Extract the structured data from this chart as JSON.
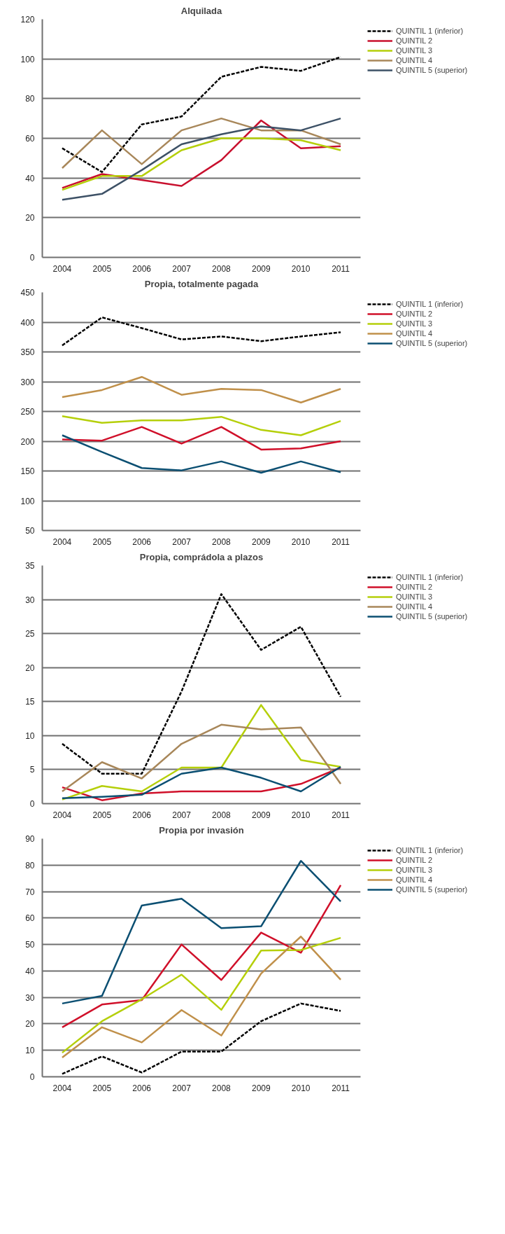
{
  "chart_data": [
    {
      "type": "line",
      "title": "Alquilada",
      "categories": [
        "2004",
        "2005",
        "2006",
        "2007",
        "2008",
        "2009",
        "2010",
        "2011"
      ],
      "ylim": [
        0,
        120
      ],
      "yticks": [
        0,
        20,
        40,
        60,
        80,
        100,
        120
      ],
      "grid": "y",
      "legend": "right",
      "series": [
        {
          "name": "QUINTIL 1 (inferior)",
          "color": "#000000",
          "line_style": "dashed",
          "values": [
            55,
            43,
            67,
            71,
            91,
            96,
            94,
            101
          ]
        },
        {
          "name": "QUINTIL 2",
          "color": "#c8102e",
          "values": [
            35,
            42,
            39,
            36,
            49,
            69,
            55,
            56
          ]
        },
        {
          "name": "QUINTIL 3",
          "color": "#b5cf0a",
          "values": [
            34,
            41,
            41,
            54,
            60,
            60,
            59,
            54
          ]
        },
        {
          "name": "QUINTIL 4",
          "color": "#a8875a",
          "values": [
            45,
            64,
            47,
            64,
            70,
            64,
            64,
            57
          ]
        },
        {
          "name": "QUINTIL 5 (superior)",
          "color": "#3d5166",
          "values": [
            29,
            32,
            44,
            57,
            62,
            66,
            64,
            70
          ]
        }
      ]
    },
    {
      "type": "line",
      "title": "Propia, totalmente pagada",
      "categories": [
        "2004",
        "2005",
        "2006",
        "2007",
        "2008",
        "2009",
        "2010",
        "2011"
      ],
      "ylim": [
        50,
        450
      ],
      "yticks": [
        50,
        100,
        150,
        200,
        250,
        300,
        350,
        400,
        450
      ],
      "grid": "y",
      "legend": "right",
      "series": [
        {
          "name": "QUINTIL 1 (inferior)",
          "color": "#000000",
          "line_style": "dashed",
          "values": [
            361,
            408,
            390,
            371,
            376,
            368,
            376,
            383
          ]
        },
        {
          "name": "QUINTIL 2",
          "color": "#d0102a",
          "values": [
            203,
            201,
            224,
            196,
            224,
            186,
            188,
            200
          ]
        },
        {
          "name": "QUINTIL 3",
          "color": "#b5cf0a",
          "values": [
            242,
            231,
            235,
            235,
            241,
            219,
            210,
            234
          ]
        },
        {
          "name": "QUINTIL 4",
          "color": "#c0904a",
          "values": [
            274,
            286,
            308,
            278,
            288,
            286,
            265,
            288
          ]
        },
        {
          "name": "QUINTIL 5 (superior)",
          "color": "#0b4f72",
          "values": [
            210,
            182,
            155,
            151,
            166,
            147,
            166,
            148
          ]
        }
      ]
    },
    {
      "type": "line",
      "title": "Propia, comprádola a plazos",
      "categories": [
        "2004",
        "2005",
        "2006",
        "2007",
        "2008",
        "2009",
        "2010",
        "2011"
      ],
      "ylim": [
        0,
        35
      ],
      "yticks": [
        0,
        5,
        10,
        15,
        20,
        25,
        30,
        35
      ],
      "grid": "y",
      "legend": "right",
      "series": [
        {
          "name": "QUINTIL 1 (inferior)",
          "color": "#000000",
          "line_style": "dashed",
          "values": [
            8.8,
            4.4,
            4.4,
            16.5,
            30.8,
            22.6,
            26,
            15.7
          ]
        },
        {
          "name": "QUINTIL 2",
          "color": "#d0102a",
          "values": [
            2.4,
            0.5,
            1.5,
            1.8,
            1.8,
            1.8,
            2.9,
            5.3
          ]
        },
        {
          "name": "QUINTIL 3",
          "color": "#b5cf0a",
          "values": [
            0.6,
            2.6,
            1.8,
            5.3,
            5.3,
            14.5,
            6.4,
            5.4
          ]
        },
        {
          "name": "QUINTIL 4",
          "color": "#a8875a",
          "values": [
            1.8,
            6.1,
            3.7,
            8.8,
            11.6,
            10.9,
            11.2,
            2.9
          ]
        },
        {
          "name": "QUINTIL 5 (superior)",
          "color": "#0b4f72",
          "values": [
            0.8,
            1.0,
            1.3,
            4.4,
            5.3,
            3.8,
            1.8,
            5.4
          ]
        }
      ]
    },
    {
      "type": "line",
      "title": "Propia por invasión",
      "categories": [
        "2004",
        "2005",
        "2006",
        "2007",
        "2008",
        "2009",
        "2010",
        "2011"
      ],
      "ylim": [
        0,
        90
      ],
      "yticks": [
        0,
        10,
        20,
        30,
        40,
        50,
        60,
        70,
        80,
        90
      ],
      "grid": "y",
      "legend": "right",
      "series": [
        {
          "name": "QUINTIL 1 (inferior)",
          "color": "#000000",
          "line_style": "dashed",
          "values": [
            1.1,
            7.7,
            1.6,
            9.5,
            9.5,
            21,
            27.7,
            24.9
          ]
        },
        {
          "name": "QUINTIL 2",
          "color": "#d0102a",
          "values": [
            18.7,
            27.3,
            29,
            50,
            36.6,
            54.5,
            46.9,
            72.4
          ]
        },
        {
          "name": "QUINTIL 3",
          "color": "#b5cf0a",
          "values": [
            9.1,
            21,
            29.3,
            38.6,
            25.3,
            47.7,
            47.9,
            52.5
          ]
        },
        {
          "name": "QUINTIL 4",
          "color": "#c0904a",
          "values": [
            7.3,
            18.7,
            13,
            25.2,
            15.6,
            39,
            53,
            36.7
          ]
        },
        {
          "name": "QUINTIL 5 (superior)",
          "color": "#0b4f72",
          "values": [
            27.7,
            30.6,
            64.7,
            67.3,
            56.2,
            56.9,
            81.6,
            66.3
          ]
        }
      ]
    }
  ]
}
